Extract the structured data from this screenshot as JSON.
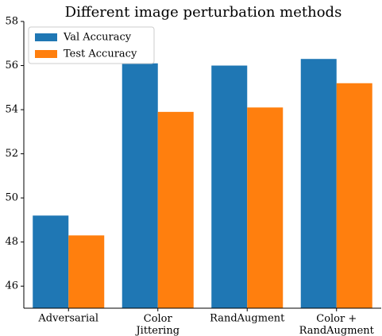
{
  "chart_data": {
    "type": "bar",
    "title": "Different image perturbation methods",
    "categories": [
      "Adversarial",
      "Color\nJittering",
      "RandAugment",
      "Color +\nRandAugment"
    ],
    "series": [
      {
        "name": "Val Accuracy",
        "color": "#1f77b4",
        "values": [
          49.2,
          56.1,
          56.0,
          56.3
        ]
      },
      {
        "name": "Test Accuracy",
        "color": "#ff7f0e",
        "values": [
          48.3,
          53.9,
          54.1,
          55.2
        ]
      }
    ],
    "ylim": [
      45,
      58
    ],
    "yticks": [
      46,
      48,
      50,
      52,
      54,
      56,
      58
    ],
    "grid": false,
    "legend": "upper left"
  }
}
